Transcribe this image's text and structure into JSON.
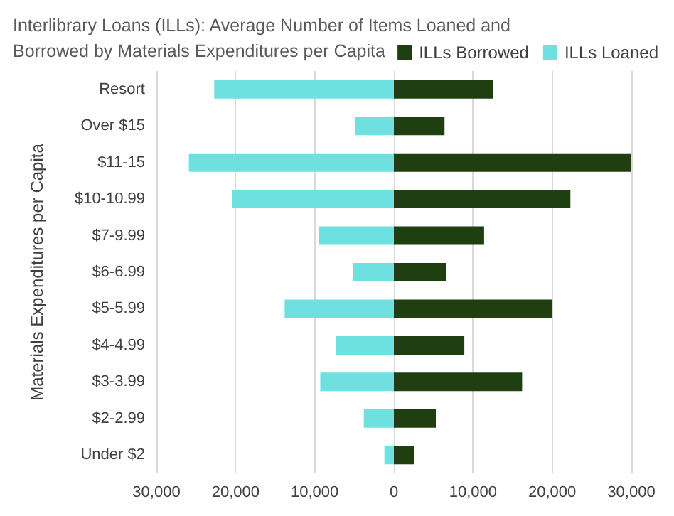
{
  "chart_data": {
    "type": "bar",
    "orientation": "horizontal",
    "stacked": true,
    "title": "Interlibrary Loans (ILLs): Average Number of Items Loaned and Borrowed by Materials Expenditures per Capita",
    "ylabel": "Materials Expenditures per Capita",
    "categories": [
      "Resort",
      "Over $15",
      "$11-15",
      "$10-10.99",
      "$7-9.99",
      "$6-6.99",
      "$5-5.99",
      "$4-4.99",
      "$3-3.99",
      "$2-2.99",
      "Under $2"
    ],
    "series": [
      {
        "name": "ILLs Borrowed",
        "color": "#203f10",
        "values": [
          12500,
          6400,
          30000,
          22300,
          11400,
          6600,
          20000,
          8900,
          16200,
          5300,
          2600
        ]
      },
      {
        "name": "ILLs Loaned",
        "color": "#6fe0e0",
        "values": [
          -22700,
          -4900,
          -25900,
          -20400,
          -9500,
          -5200,
          -13800,
          -7300,
          -9300,
          -3800,
          -1200
        ]
      }
    ],
    "xlim": [
      -30000,
      30000
    ],
    "xticks": [
      {
        "value": -30000,
        "label": "30,000"
      },
      {
        "value": -20000,
        "label": "20,000"
      },
      {
        "value": -10000,
        "label": "10,000"
      },
      {
        "value": 0,
        "label": "0"
      },
      {
        "value": 10000,
        "label": "10,000"
      },
      {
        "value": 20000,
        "label": "20,000"
      },
      {
        "value": 30000,
        "label": "30,000"
      }
    ],
    "grid": "x",
    "legend": "top right"
  }
}
